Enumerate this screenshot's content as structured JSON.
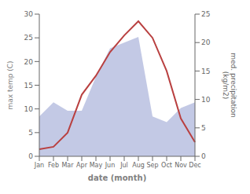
{
  "chart_data": {
    "type": "line",
    "categories": [
      "Jan",
      "Feb",
      "Mar",
      "Apr",
      "May",
      "Jun",
      "Jul",
      "Aug",
      "Sep",
      "Oct",
      "Nov",
      "Dec"
    ],
    "series": [
      {
        "type": "line",
        "color": "#b94040",
        "values": [
          1.5,
          2.0,
          5.0,
          13.0,
          17.0,
          22.0,
          25.5,
          28.5,
          25.0,
          18.0,
          8.0,
          3.0
        ]
      },
      {
        "type": "area",
        "color": "#b8c0e0",
        "axis": "y2",
        "values": [
          7.0,
          9.5,
          8.0,
          8.0,
          14.0,
          19.0,
          20.0,
          21.0,
          7.0,
          6.0,
          8.5,
          9.5
        ]
      }
    ],
    "xlabel": "date (month)",
    "ylabel": "max temp (C)",
    "y2label": "med. precipitation\n(kg/m2)",
    "ylim": [
      0,
      30
    ],
    "yticks": [
      0,
      5,
      10,
      15,
      20,
      25,
      30
    ],
    "y2lim": [
      0,
      25
    ],
    "y2ticks": [
      0,
      5,
      10,
      15,
      20,
      25
    ],
    "grid": false
  }
}
